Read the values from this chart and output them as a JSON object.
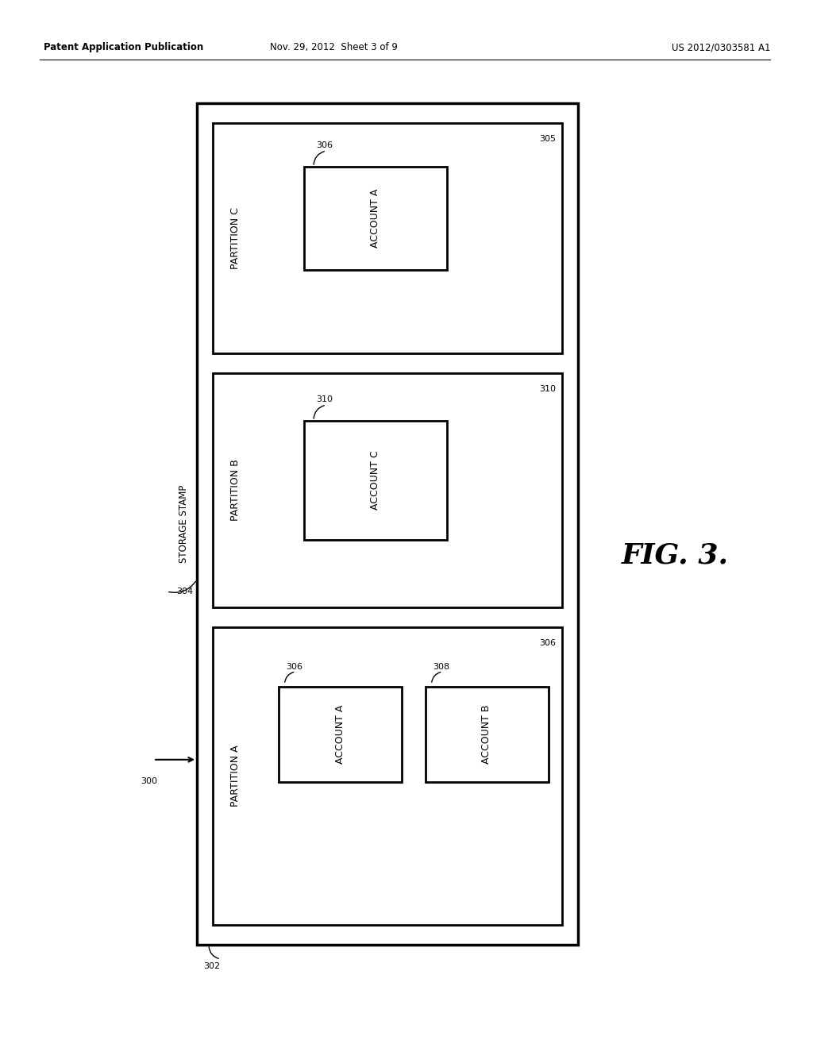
{
  "bg_color": "#ffffff",
  "header_left": "Patent Application Publication",
  "header_center": "Nov. 29, 2012  Sheet 3 of 9",
  "header_right": "US 2012/0303581 A1",
  "fig_label": "FIG. 3.",
  "font_sizes": {
    "header": 8.5,
    "partition_label": 9,
    "account_label": 9,
    "number_label": 8,
    "fig_label": 26,
    "stamp_label": 8.5
  }
}
